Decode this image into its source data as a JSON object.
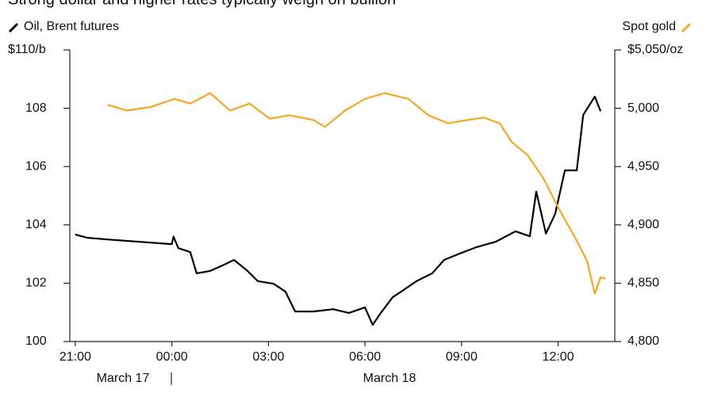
{
  "chart_data": {
    "type": "line",
    "title": "Strong dollar and higher rates typically weigh on bullion",
    "x_ticks_note_dates": [
      "March 17",
      "March 18"
    ],
    "xlim": [
      -0.17,
      16.76
    ],
    "xticks": [
      {
        "value": 0,
        "label": "21:00"
      },
      {
        "value": 3,
        "label": "00:00"
      },
      {
        "value": 6,
        "label": "03:00"
      },
      {
        "value": 9,
        "label": "06:00"
      },
      {
        "value": 12,
        "label": "09:00"
      },
      {
        "value": 15,
        "label": "12:00"
      }
    ],
    "ylim": [
      100,
      110
    ],
    "yticks": [
      100,
      102,
      104,
      106,
      108,
      {
        "value": 110,
        "label": "$110/b"
      }
    ],
    "y2lim": [
      4800,
      5050
    ],
    "y2ticks": [
      {
        "value": 4800,
        "label": "4,800"
      },
      {
        "value": 4850,
        "label": "4,850"
      },
      {
        "value": 4900,
        "label": "4,900"
      },
      {
        "value": 4950,
        "label": "4,950"
      },
      {
        "value": 5000,
        "label": "5,000"
      },
      {
        "value": 5050,
        "label": "$5,050/oz"
      }
    ],
    "series": [
      {
        "name": "Oil, Brent futures",
        "color": "#000000",
        "x": [
          0,
          0.37,
          1,
          3,
          3.05,
          3.2,
          3.57,
          3.77,
          4.19,
          4.56,
          4.93,
          5.35,
          5.67,
          6.16,
          6.53,
          6.83,
          7.4,
          8.01,
          8.5,
          9,
          9.24,
          9.49,
          9.86,
          10.23,
          10.6,
          11.09,
          11.46,
          11.95,
          12.45,
          13.06,
          13.68,
          14.12,
          14.32,
          14.62,
          14.91,
          15.21,
          15.58,
          15.78,
          16.14,
          16.32
        ],
        "values": [
          103.67,
          103.56,
          103.5,
          103.34,
          103.6,
          103.2,
          103.07,
          102.34,
          102.42,
          102.6,
          102.8,
          102.42,
          102.07,
          101.98,
          101.71,
          101.03,
          101.03,
          101.11,
          100.98,
          101.17,
          100.57,
          100.98,
          101.52,
          101.79,
          102.07,
          102.34,
          102.8,
          103.02,
          103.23,
          103.42,
          103.78,
          103.61,
          105.14,
          103.7,
          104.38,
          105.87,
          105.87,
          107.77,
          108.4,
          107.9
        ]
      },
      {
        "name": "Spot gold",
        "color": "#f5a623",
        "axis": "y2",
        "x": [
          1,
          1.6,
          2.34,
          3.08,
          3.57,
          4.19,
          4.81,
          5.42,
          6.04,
          6.65,
          7.39,
          7.76,
          8.38,
          9,
          9.61,
          10.35,
          10.97,
          11.58,
          12.2,
          12.69,
          13.19,
          13.56,
          14.05,
          14.54,
          15.04,
          15.53,
          15.9,
          16.14,
          16.32,
          16.47
        ],
        "values": [
          5003,
          4998,
          5001,
          5008,
          5004,
          5013,
          4998,
          5004,
          4991,
          4994,
          4990,
          4984,
          4998,
          5008,
          5013,
          5008,
          4994,
          4987,
          4990,
          4992,
          4987,
          4971,
          4960,
          4940,
          4913,
          4889,
          4869,
          4841,
          4855,
          4854
        ]
      }
    ]
  }
}
